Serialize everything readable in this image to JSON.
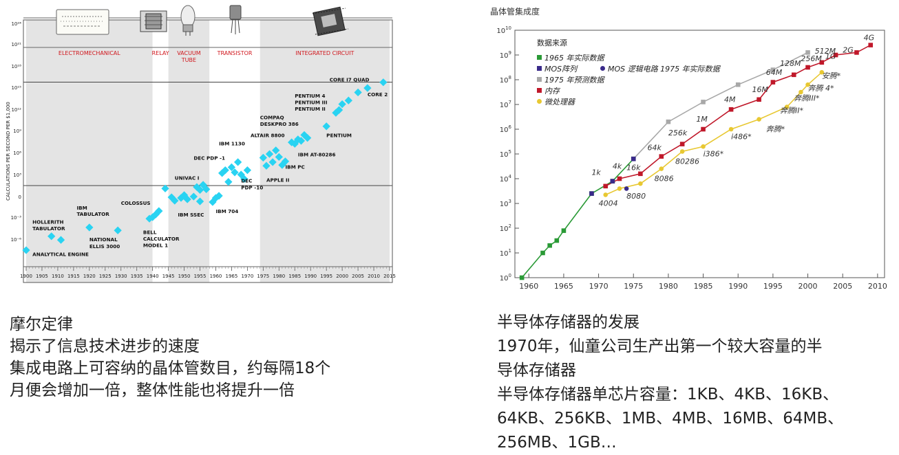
{
  "left_caption": {
    "title": "摩尔定律",
    "line1": "揭示了信息技术进步的速度",
    "line2": "集成电路上可容纳的晶体管数目，约每隔18个",
    "line3": "月便会增加一倍，整体性能也将提升一倍"
  },
  "right_caption": {
    "title": "半导体存储器的发展",
    "line1": "1970年，仙童公司生产出第一个较大容量的半",
    "line2": "导体存储器",
    "line3": "半导体存储器单芯片容量：1KB、4KB、16KB、",
    "line4": "64KB、256KB、1MB、4MB、16MB、64MB、",
    "line5": "256MB、1GB…"
  },
  "chart_data": [
    {
      "type": "scatter",
      "title": "",
      "ylabel": "CALCULATIONS PER SECOND PER $1,000",
      "xlabel": "",
      "x_ticks": [
        1900,
        1905,
        1910,
        1915,
        1920,
        1925,
        1930,
        1935,
        1940,
        1945,
        1950,
        1955,
        1960,
        1965,
        1970,
        1975,
        1980,
        1985,
        1990,
        1995,
        2000,
        2005,
        2010,
        2015
      ],
      "y_ticks": [
        "10⁻⁶",
        "10⁻³",
        "0",
        "10³",
        "10⁶",
        "10⁹",
        "10¹²",
        "10¹⁵",
        "10¹⁸"
      ],
      "y_log_exponents": [
        -6,
        -3,
        0,
        3,
        6,
        9,
        12,
        15,
        18
      ],
      "eras": [
        {
          "label": "ELECTROMECHANICAL",
          "start": 1900,
          "end": 1940
        },
        {
          "label": "RELAY",
          "start": 1940,
          "end": 1945
        },
        {
          "label": "VACUUM TUBE",
          "start": 1945,
          "end": 1958
        },
        {
          "label": "TRANSISTOR",
          "start": 1958,
          "end": 1974
        },
        {
          "label": "INTEGRATED CIRCUIT",
          "start": 1974,
          "end": 2015
        }
      ],
      "points": [
        {
          "x": 1900,
          "y": -7.5
        },
        {
          "x": 1908,
          "y": -5.6
        },
        {
          "x": 1911,
          "y": -6.1
        },
        {
          "x": 1920,
          "y": -4.4
        },
        {
          "x": 1929,
          "y": -4.8
        },
        {
          "x": 1939,
          "y": -3.2
        },
        {
          "x": 1940,
          "y": -3.0
        },
        {
          "x": 1941,
          "y": -2.6
        },
        {
          "x": 1942,
          "y": -2.1
        },
        {
          "x": 1944,
          "y": 1.1
        },
        {
          "x": 1946,
          "y": -0.1
        },
        {
          "x": 1947,
          "y": -0.6
        },
        {
          "x": 1949,
          "y": -0.2
        },
        {
          "x": 1950,
          "y": 0.2
        },
        {
          "x": 1951,
          "y": -0.4
        },
        {
          "x": 1953,
          "y": 0.0
        },
        {
          "x": 1954,
          "y": 1.3
        },
        {
          "x": 1955,
          "y": 0.9
        },
        {
          "x": 1955,
          "y": -0.7
        },
        {
          "x": 1956,
          "y": 1.6
        },
        {
          "x": 1957,
          "y": 1.0
        },
        {
          "x": 1959,
          "y": -0.8
        },
        {
          "x": 1960,
          "y": -0.2
        },
        {
          "x": 1961,
          "y": 0.1
        },
        {
          "x": 1962,
          "y": 3.2
        },
        {
          "x": 1963,
          "y": 3.6
        },
        {
          "x": 1964,
          "y": 2.0
        },
        {
          "x": 1965,
          "y": 4.0
        },
        {
          "x": 1966,
          "y": 3.3
        },
        {
          "x": 1967,
          "y": 4.7
        },
        {
          "x": 1968,
          "y": 3.0
        },
        {
          "x": 1969,
          "y": 2.4
        },
        {
          "x": 1970,
          "y": 3.6
        },
        {
          "x": 1975,
          "y": 5.3
        },
        {
          "x": 1976,
          "y": 4.2
        },
        {
          "x": 1977,
          "y": 5.8
        },
        {
          "x": 1978,
          "y": 4.7
        },
        {
          "x": 1979,
          "y": 6.3
        },
        {
          "x": 1980,
          "y": 5.4
        },
        {
          "x": 1981,
          "y": 4.3
        },
        {
          "x": 1982,
          "y": 4.8
        },
        {
          "x": 1984,
          "y": 7.4
        },
        {
          "x": 1985,
          "y": 7.2
        },
        {
          "x": 1986,
          "y": 7.8
        },
        {
          "x": 1987,
          "y": 7.6
        },
        {
          "x": 1988,
          "y": 8.4
        },
        {
          "x": 1989,
          "y": 8.0
        },
        {
          "x": 1995,
          "y": 9.6
        },
        {
          "x": 1998,
          "y": 11.5
        },
        {
          "x": 1999,
          "y": 11.9
        },
        {
          "x": 2000,
          "y": 12.7
        },
        {
          "x": 2002,
          "y": 13.2
        },
        {
          "x": 2005,
          "y": 14.3
        },
        {
          "x": 2008,
          "y": 14.9
        },
        {
          "x": 2013,
          "y": 15.7
        }
      ],
      "annotations": [
        {
          "text": "ANALYTICAL ENGINE",
          "x": 1902,
          "y": -8.3
        },
        {
          "text": "HOLLERITH",
          "x": 1902,
          "y": -3.9
        },
        {
          "text": "TABULATOR",
          "x": 1902,
          "y": -4.8
        },
        {
          "text": "IBM",
          "x": 1916,
          "y": -1.9
        },
        {
          "text": "TABULATOR",
          "x": 1916,
          "y": -2.8
        },
        {
          "text": "NATIONAL",
          "x": 1920,
          "y": -6.3
        },
        {
          "text": "ELLIS 3000",
          "x": 1920,
          "y": -7.2
        },
        {
          "text": "COLOSSUS",
          "x": 1930,
          "y": -1.2
        },
        {
          "text": "BELL",
          "x": 1937,
          "y": -5.3
        },
        {
          "text": "CALCULATOR",
          "x": 1937,
          "y": -6.2
        },
        {
          "text": "MODEL 1",
          "x": 1937,
          "y": -7.1
        },
        {
          "text": "UNIVAC I",
          "x": 1947,
          "y": 2.3
        },
        {
          "text": "IBM SSEC",
          "x": 1948,
          "y": -2.9
        },
        {
          "text": "IBM 704",
          "x": 1960,
          "y": -2.4
        },
        {
          "text": "DEC PDP -1",
          "x": 1953,
          "y": 5.0
        },
        {
          "text": "IBM 1130",
          "x": 1961,
          "y": 7.0
        },
        {
          "text": "DEC",
          "x": 1968,
          "y": 1.9
        },
        {
          "text": "PDP -10",
          "x": 1968,
          "y": 1.0
        },
        {
          "text": "ALTAIR 8800",
          "x": 1971,
          "y": 8.1
        },
        {
          "text": "COMPAQ",
          "x": 1974,
          "y": 10.6
        },
        {
          "text": "DESKPRO 386",
          "x": 1974,
          "y": 9.7
        },
        {
          "text": "IBM AT-80286",
          "x": 1986,
          "y": 5.5
        },
        {
          "text": "IBM PC",
          "x": 1982,
          "y": 3.8
        },
        {
          "text": "APPLE II",
          "x": 1976,
          "y": 2.0
        },
        {
          "text": "PENTIUM",
          "x": 1995,
          "y": 8.1
        },
        {
          "text": "PENTIUM 4",
          "x": 1985,
          "y": 13.6
        },
        {
          "text": "PENTIUM III",
          "x": 1985,
          "y": 12.7
        },
        {
          "text": "PENTIUM II",
          "x": 1985,
          "y": 11.8
        },
        {
          "text": "CORE I7 QUAD",
          "x": 1996,
          "y": 15.8
        },
        {
          "text": "CORE 2",
          "x": 2008,
          "y": 13.8
        }
      ]
    },
    {
      "type": "line",
      "title": "晶体管集成度",
      "xlabel": "",
      "ylabel": "",
      "x_ticks": [
        1960,
        1965,
        1970,
        1975,
        1980,
        1985,
        1990,
        1995,
        2000,
        2005,
        2010
      ],
      "xlim": [
        1958,
        2011
      ],
      "y_log_exponents": [
        0,
        1,
        2,
        3,
        4,
        5,
        6,
        7,
        8,
        9,
        10
      ],
      "legend_title": "数据来源",
      "legend": [
        "1965 年实际数据",
        "MOS阵列",
        "MOS 逻辑电路  1975 年实际数据",
        "1975 年预测数据",
        "内存",
        "微处理器"
      ],
      "series": [
        {
          "name": "1965 年实际数据",
          "color": "#2a9a36",
          "points": [
            [
              1959,
              0
            ],
            [
              1962,
              1
            ],
            [
              1963,
              1.3
            ],
            [
              1964,
              1.5
            ],
            [
              1965,
              1.9
            ],
            [
              1969,
              3.4
            ],
            [
              1972,
              3.9
            ],
            [
              1975,
              4.8
            ]
          ]
        },
        {
          "name": "1975 年预测数据",
          "color": "#a8a8a8",
          "points": [
            [
              1975,
              4.8
            ],
            [
              1980,
              6.3
            ],
            [
              1985,
              7.1
            ],
            [
              1990,
              7.8
            ],
            [
              1995,
              8.4
            ],
            [
              2000,
              9.1
            ]
          ]
        },
        {
          "name": "内存",
          "color": "#c0182a",
          "points": [
            [
              1971,
              3.7
            ],
            [
              1973,
              4.0
            ],
            [
              1976,
              4.2
            ],
            [
              1979,
              4.9
            ],
            [
              1982,
              5.4
            ],
            [
              1985,
              6.0
            ],
            [
              1989,
              6.8
            ],
            [
              1993,
              7.2
            ],
            [
              1995,
              7.9
            ],
            [
              1998,
              8.2
            ],
            [
              2000,
              8.5
            ],
            [
              2002,
              8.7
            ],
            [
              2004,
              9.0
            ],
            [
              2007,
              9.1
            ],
            [
              2009,
              9.4
            ]
          ]
        },
        {
          "name": "微处理器",
          "color": "#e8c832",
          "points": [
            [
              1971,
              3.35
            ],
            [
              1973,
              3.6
            ],
            [
              1976,
              3.8
            ],
            [
              1979,
              4.4
            ],
            [
              1982,
              5.1
            ],
            [
              1985,
              5.3
            ],
            [
              1989,
              6.0
            ],
            [
              1993,
              6.4
            ],
            [
              1997,
              6.9
            ],
            [
              1999,
              7.5
            ],
            [
              2000,
              7.8
            ],
            [
              2002,
              8.3
            ]
          ]
        },
        {
          "name": "MOS阵列",
          "color": "#3a2a8a",
          "points": [
            [
              1969,
              3.4
            ],
            [
              1972,
              3.9
            ],
            [
              1975,
              4.8
            ]
          ]
        },
        {
          "name": "MOS 逻辑电路",
          "color": "#3a2a8a",
          "points": [
            [
              1974,
              3.6
            ]
          ]
        }
      ],
      "annotations": [
        {
          "text": "1k",
          "x": 1969,
          "y": 4.15
        },
        {
          "text": "4k",
          "x": 1972,
          "y": 4.4
        },
        {
          "text": "16k",
          "x": 1974,
          "y": 4.35
        },
        {
          "text": "64k",
          "x": 1977,
          "y": 5.15
        },
        {
          "text": "256k",
          "x": 1980,
          "y": 5.75
        },
        {
          "text": "1M",
          "x": 1984,
          "y": 6.3
        },
        {
          "text": "4M",
          "x": 1988,
          "y": 7.1
        },
        {
          "text": "16M",
          "x": 1992,
          "y": 7.5
        },
        {
          "text": "64M",
          "x": 1994,
          "y": 8.2
        },
        {
          "text": "128M",
          "x": 1996,
          "y": 8.55
        },
        {
          "text": "256M",
          "x": 1999,
          "y": 8.75
        },
        {
          "text": "512M",
          "x": 2001,
          "y": 9.05
        },
        {
          "text": "1G",
          "x": 2002.5,
          "y": 8.85
        },
        {
          "text": "2G",
          "x": 2005,
          "y": 9.1
        },
        {
          "text": "4G",
          "x": 2008,
          "y": 9.6
        },
        {
          "text": "4004",
          "x": 1970,
          "y": 2.9
        },
        {
          "text": "8080",
          "x": 1974,
          "y": 3.2
        },
        {
          "text": "8086",
          "x": 1978,
          "y": 3.9
        },
        {
          "text": "80286",
          "x": 1981,
          "y": 4.6
        },
        {
          "text": "i386*",
          "x": 1985,
          "y": 4.9
        },
        {
          "text": "i486*",
          "x": 1989,
          "y": 5.6
        },
        {
          "text": "奔腾*",
          "x": 1994,
          "y": 5.9
        },
        {
          "text": "奔腾II*",
          "x": 1996,
          "y": 6.65
        },
        {
          "text": "奔腾III*",
          "x": 1998,
          "y": 7.15
        },
        {
          "text": "奔腾 4*",
          "x": 2000,
          "y": 7.55
        },
        {
          "text": "安腾*",
          "x": 2002,
          "y": 8.05
        }
      ]
    }
  ]
}
